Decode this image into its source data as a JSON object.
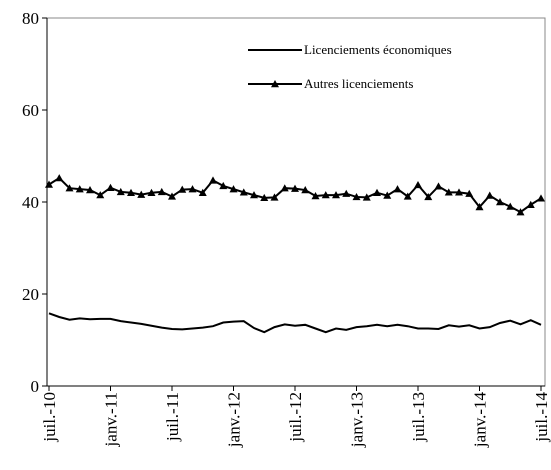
{
  "chart_data": {
    "type": "line",
    "categories": [
      "juil.-10",
      null,
      null,
      null,
      null,
      null,
      "janv.-11",
      null,
      null,
      null,
      null,
      null,
      "juil.-11",
      null,
      null,
      null,
      null,
      null,
      "janv.-12",
      null,
      null,
      null,
      null,
      null,
      "juil.-12",
      null,
      null,
      null,
      null,
      null,
      "janv.-13",
      null,
      null,
      null,
      null,
      null,
      "juil.-13",
      null,
      null,
      null,
      null,
      null,
      "janv.-14",
      null,
      null,
      null,
      null,
      null,
      "juil.-14"
    ],
    "series": [
      {
        "name": "Licenciements économiques",
        "color": "#000000",
        "marker": "none",
        "values": [
          15.8,
          15.0,
          14.4,
          14.7,
          14.5,
          14.6,
          14.6,
          14.1,
          13.8,
          13.5,
          13.1,
          12.7,
          12.4,
          12.3,
          12.5,
          12.7,
          13.0,
          13.8,
          14.0,
          14.1,
          12.6,
          11.7,
          12.8,
          13.4,
          13.1,
          13.3,
          12.5,
          11.7,
          12.5,
          12.2,
          12.8,
          13.0,
          13.3,
          13.0,
          13.3,
          13.0,
          12.5,
          12.5,
          12.4,
          13.2,
          12.9,
          13.2,
          12.5,
          12.8,
          13.7,
          14.2,
          13.4,
          14.3,
          13.3
        ]
      },
      {
        "name": "Autres licenciements",
        "color": "#000000",
        "marker": "triangle",
        "values": [
          43.8,
          45.2,
          43.0,
          42.8,
          42.6,
          41.5,
          43.1,
          42.2,
          42.0,
          41.6,
          42.0,
          42.2,
          41.2,
          42.7,
          42.8,
          42.0,
          44.7,
          43.5,
          42.8,
          42.1,
          41.5,
          40.9,
          41.0,
          43.0,
          42.9,
          42.6,
          41.3,
          41.5,
          41.5,
          41.8,
          41.1,
          41.0,
          42.0,
          41.4,
          42.8,
          41.2,
          43.7,
          41.1,
          43.4,
          42.1,
          42.1,
          41.8,
          38.9,
          41.4,
          40.0,
          39.0,
          37.8,
          39.4,
          40.8
        ]
      }
    ],
    "ylim": [
      0,
      80
    ],
    "yticks": [
      0,
      20,
      40,
      60,
      80
    ],
    "grid": false,
    "legend": "top-right"
  }
}
